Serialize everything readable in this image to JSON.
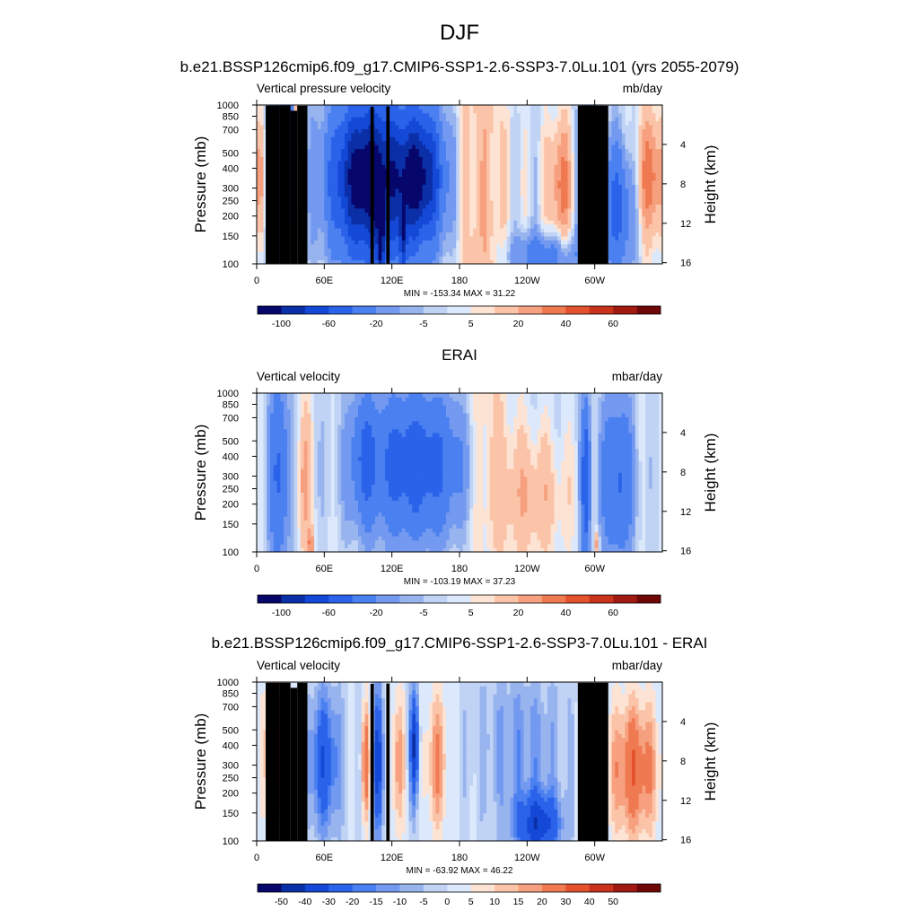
{
  "figure": {
    "season": "DJF"
  },
  "chart_data": [
    {
      "type": "heatmap",
      "title": "b.e21.BSSP126cmip6.f09_g17.CMIP6-SSP1-2.6-SSP3-7.0Lu.101 (yrs 2055-2079)",
      "left_label": "Vertical pressure velocity",
      "right_label": "mb/day",
      "ylabel": "Pressure (mb)",
      "y2label": "Height (km)",
      "x_ticks": [
        "0",
        "60E",
        "120E",
        "180",
        "120W",
        "60W"
      ],
      "x_tick_values": [
        0,
        60,
        120,
        180,
        240,
        300
      ],
      "xlim": [
        0,
        360
      ],
      "y_ticks": [
        "100",
        "150",
        "200",
        "250",
        "300",
        "400",
        "500",
        "700",
        "850",
        "1000"
      ],
      "y_tick_values": [
        100,
        150,
        200,
        250,
        300,
        400,
        500,
        700,
        850,
        1000
      ],
      "ylim": [
        1000,
        100
      ],
      "y_scale": "log",
      "y2_ticks": [
        "4",
        "8",
        "12",
        "16"
      ],
      "y2_tick_values": [
        4,
        8,
        12,
        16
      ],
      "stats": "MIN = -153.34  MAX =  31.22",
      "colorbar_labels": [
        "-100",
        "-60",
        "-20",
        "-5",
        "5",
        "20",
        "40",
        "60"
      ],
      "colorbar_levels": [
        -120,
        -100,
        -80,
        -60,
        -40,
        -20,
        -10,
        -5,
        0,
        5,
        10,
        20,
        30,
        40,
        50,
        60,
        70
      ],
      "colorbar_colors": [
        "#06066b",
        "#0b2fa7",
        "#1448d6",
        "#2a63ea",
        "#4b80f0",
        "#7399f0",
        "#98b4ee",
        "#c0d3f5",
        "#dce8fb",
        "#fde3d4",
        "#fbc4a8",
        "#f6a07f",
        "#ef7a52",
        "#e3522c",
        "#c9331b",
        "#a01a12",
        "#700707"
      ],
      "land": true
    },
    {
      "type": "heatmap",
      "title": "ERAI",
      "left_label": "Vertical velocity",
      "right_label": "mbar/day",
      "ylabel": "Pressure (mb)",
      "y2label": "Height (km)",
      "x_ticks": [
        "0",
        "60E",
        "120E",
        "180",
        "120W",
        "60W"
      ],
      "x_tick_values": [
        0,
        60,
        120,
        180,
        240,
        300
      ],
      "xlim": [
        0,
        360
      ],
      "y_ticks": [
        "100",
        "150",
        "200",
        "250",
        "300",
        "400",
        "500",
        "700",
        "850",
        "1000"
      ],
      "y_tick_values": [
        100,
        150,
        200,
        250,
        300,
        400,
        500,
        700,
        850,
        1000
      ],
      "ylim": [
        1000,
        100
      ],
      "y_scale": "log",
      "y2_ticks": [
        "4",
        "8",
        "12",
        "16"
      ],
      "y2_tick_values": [
        4,
        8,
        12,
        16
      ],
      "stats": "MIN = -103.19  MAX =  37.23",
      "colorbar_labels": [
        "-100",
        "-60",
        "-20",
        "-5",
        "5",
        "20",
        "40",
        "60"
      ],
      "colorbar_levels": [
        -120,
        -100,
        -80,
        -60,
        -40,
        -20,
        -10,
        -5,
        0,
        5,
        10,
        20,
        30,
        40,
        50,
        60,
        70
      ],
      "colorbar_colors": [
        "#06066b",
        "#0b2fa7",
        "#1448d6",
        "#2a63ea",
        "#4b80f0",
        "#7399f0",
        "#98b4ee",
        "#c0d3f5",
        "#dce8fb",
        "#fde3d4",
        "#fbc4a8",
        "#f6a07f",
        "#ef7a52",
        "#e3522c",
        "#c9331b",
        "#a01a12",
        "#700707"
      ],
      "land": false
    },
    {
      "type": "heatmap",
      "title": "b.e21.BSSP126cmip6.f09_g17.CMIP6-SSP1-2.6-SSP3-7.0Lu.101 - ERAI",
      "left_label": "Vertical velocity",
      "right_label": "mbar/day",
      "ylabel": "Pressure (mb)",
      "y2label": "Height (km)",
      "x_ticks": [
        "0",
        "60E",
        "120E",
        "180",
        "120W",
        "60W"
      ],
      "x_tick_values": [
        0,
        60,
        120,
        180,
        240,
        300
      ],
      "xlim": [
        0,
        360
      ],
      "y_ticks": [
        "100",
        "150",
        "200",
        "250",
        "300",
        "400",
        "500",
        "700",
        "850",
        "1000"
      ],
      "y_tick_values": [
        100,
        150,
        200,
        250,
        300,
        400,
        500,
        700,
        850,
        1000
      ],
      "ylim": [
        1000,
        100
      ],
      "y_scale": "log",
      "y2_ticks": [
        "4",
        "8",
        "12",
        "16"
      ],
      "y2_tick_values": [
        4,
        8,
        12,
        16
      ],
      "stats": "MIN = -63.92  MAX =  46.22",
      "colorbar_labels": [
        "-50",
        "-40",
        "-30",
        "-20",
        "-15",
        "-10",
        "-5",
        "0",
        "5",
        "10",
        "15",
        "20",
        "30",
        "40",
        "50"
      ],
      "colorbar_levels": [
        -60,
        -50,
        -40,
        -30,
        -20,
        -15,
        -10,
        -5,
        0,
        5,
        10,
        15,
        20,
        30,
        40,
        50,
        60
      ],
      "colorbar_colors": [
        "#06066b",
        "#0b2fa7",
        "#1448d6",
        "#2a63ea",
        "#4b80f0",
        "#7399f0",
        "#98b4ee",
        "#c0d3f5",
        "#dce8fb",
        "#fde3d4",
        "#fbc4a8",
        "#f6a07f",
        "#ef7a52",
        "#e3522c",
        "#c9331b",
        "#a01a12",
        "#700707"
      ],
      "land": true
    }
  ]
}
